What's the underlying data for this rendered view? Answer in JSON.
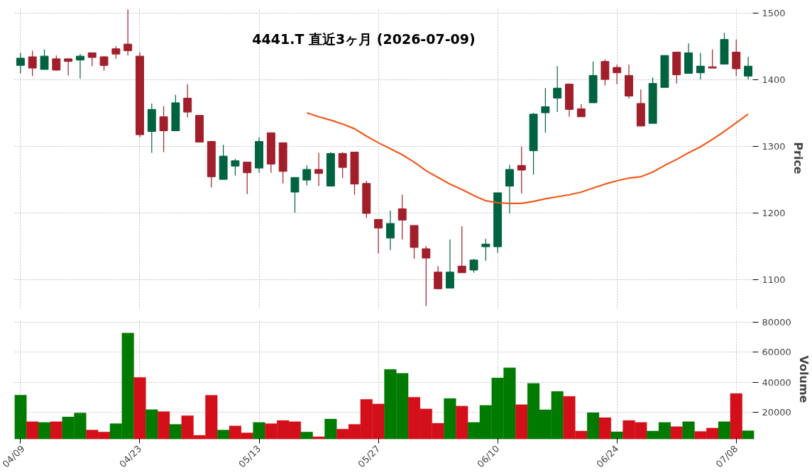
{
  "chart_data": [
    {
      "type": "candlestick",
      "title": "4441.T 直近3ヶ月 (2026-07-09)",
      "ylabel": "Price",
      "ohlc": [
        [
          1421,
          1440,
          1409,
          1432
        ],
        [
          1434,
          1443,
          1405,
          1417
        ],
        [
          1415,
          1445,
          1415,
          1435
        ],
        [
          1431,
          1436,
          1413,
          1414
        ],
        [
          1431,
          1431,
          1406,
          1427
        ],
        [
          1429,
          1438,
          1401,
          1435
        ],
        [
          1440,
          1440,
          1420,
          1433
        ],
        [
          1434,
          1435,
          1413,
          1421
        ],
        [
          1446,
          1450,
          1431,
          1438
        ],
        [
          1453,
          1505,
          1436,
          1443
        ],
        [
          1435,
          1441,
          1313,
          1317
        ],
        [
          1322,
          1364,
          1290,
          1355
        ],
        [
          1344,
          1360,
          1291,
          1323
        ],
        [
          1323,
          1377,
          1323,
          1365
        ],
        [
          1372,
          1393,
          1343,
          1351
        ],
        [
          1346,
          1346,
          1306,
          1306
        ],
        [
          1307,
          1307,
          1238,
          1254
        ],
        [
          1250,
          1302,
          1250,
          1285
        ],
        [
          1270,
          1281,
          1256,
          1278
        ],
        [
          1276,
          1276,
          1228,
          1260
        ],
        [
          1267,
          1313,
          1260,
          1307
        ],
        [
          1320,
          1320,
          1260,
          1273
        ],
        [
          1305,
          1305,
          1244,
          1262
        ],
        [
          1231,
          1253,
          1200,
          1253
        ],
        [
          1249,
          1271,
          1241,
          1265
        ],
        [
          1265,
          1290,
          1240,
          1259
        ],
        [
          1240,
          1291,
          1240,
          1289
        ],
        [
          1289,
          1291,
          1252,
          1268
        ],
        [
          1291,
          1291,
          1227,
          1243
        ],
        [
          1244,
          1248,
          1192,
          1199
        ],
        [
          1190,
          1190,
          1139,
          1177
        ],
        [
          1162,
          1203,
          1144,
          1184
        ],
        [
          1206,
          1227,
          1160,
          1189
        ],
        [
          1181,
          1181,
          1131,
          1148
        ],
        [
          1146,
          1150,
          1060,
          1132
        ],
        [
          1111,
          1120,
          1085,
          1086
        ],
        [
          1087,
          1160,
          1087,
          1111
        ],
        [
          1120,
          1180,
          1110,
          1110
        ],
        [
          1114,
          1131,
          1110,
          1129
        ],
        [
          1149,
          1161,
          1128,
          1153
        ],
        [
          1149,
          1230,
          1140,
          1230
        ],
        [
          1240,
          1272,
          1199,
          1265
        ],
        [
          1271,
          1299,
          1229,
          1264
        ],
        [
          1293,
          1350,
          1257,
          1348
        ],
        [
          1350,
          1387,
          1320,
          1359
        ],
        [
          1372,
          1420,
          1351,
          1387
        ],
        [
          1393,
          1394,
          1344,
          1355
        ],
        [
          1356,
          1363,
          1344,
          1344
        ],
        [
          1365,
          1427,
          1365,
          1406
        ],
        [
          1427,
          1430,
          1391,
          1400
        ],
        [
          1418,
          1422,
          1393,
          1410
        ],
        [
          1406,
          1422,
          1371,
          1375
        ],
        [
          1364,
          1385,
          1330,
          1330
        ],
        [
          1334,
          1403,
          1334,
          1394
        ],
        [
          1388,
          1436,
          1388,
          1436
        ],
        [
          1441,
          1441,
          1394,
          1407
        ],
        [
          1409,
          1454,
          1409,
          1440
        ],
        [
          1410,
          1440,
          1400,
          1420
        ],
        [
          1419,
          1445,
          1417,
          1417
        ],
        [
          1423,
          1470,
          1423,
          1460
        ],
        [
          1441,
          1460,
          1405,
          1416
        ],
        [
          1405,
          1434,
          1400,
          1420
        ]
      ],
      "colors": [
        "#006340",
        "#a01f2a",
        "#006340",
        "#a01f2a",
        "#a01f2a",
        "#006340",
        "#a01f2a",
        "#a01f2a",
        "#a01f2a",
        "#a01f2a",
        "#a01f2a",
        "#006340",
        "#a01f2a",
        "#006340",
        "#a01f2a",
        "#a01f2a",
        "#a01f2a",
        "#006340",
        "#006340",
        "#a01f2a",
        "#006340",
        "#a01f2a",
        "#a01f2a",
        "#006340",
        "#006340",
        "#a01f2a",
        "#006340",
        "#a01f2a",
        "#a01f2a",
        "#a01f2a",
        "#a01f2a",
        "#006340",
        "#a01f2a",
        "#a01f2a",
        "#a01f2a",
        "#a01f2a",
        "#006340",
        "#a01f2a",
        "#006340",
        "#006340",
        "#006340",
        "#006340",
        "#a01f2a",
        "#006340",
        "#006340",
        "#006340",
        "#a01f2a",
        "#a01f2a",
        "#006340",
        "#a01f2a",
        "#a01f2a",
        "#a01f2a",
        "#a01f2a",
        "#006340",
        "#006340",
        "#a01f2a",
        "#006340",
        "#006340",
        "#a01f2a",
        "#006340",
        "#a01f2a",
        "#006340"
      ],
      "series": [
        {
          "type": "line",
          "color": "#f05a1e",
          "values": [
            null,
            null,
            null,
            null,
            null,
            null,
            null,
            null,
            null,
            null,
            null,
            null,
            null,
            null,
            null,
            null,
            null,
            null,
            null,
            null,
            null,
            null,
            null,
            null,
            1350,
            1344,
            1339,
            1333,
            1326,
            1315,
            1305,
            1296,
            1287,
            1276,
            1263,
            1253,
            1243,
            1235,
            1226,
            1218,
            1215,
            1214,
            1214,
            1217,
            1221,
            1224,
            1227,
            1231,
            1237,
            1243,
            1248,
            1252,
            1254,
            1261,
            1271,
            1280,
            1290,
            1299,
            1310,
            1322,
            1335,
            1348
          ]
        }
      ],
      "ylim": [
        1056,
        1508
      ],
      "yticks": [
        1100,
        1200,
        1300,
        1400,
        1500
      ],
      "grid": true,
      "tick_labels": "y"
    },
    {
      "type": "bar",
      "ylabel": "Volume",
      "categories": [
        "04/09",
        null,
        null,
        null,
        null,
        null,
        null,
        null,
        null,
        null,
        "04/23",
        null,
        null,
        null,
        null,
        null,
        null,
        null,
        null,
        null,
        "05/13",
        null,
        null,
        null,
        null,
        null,
        null,
        null,
        null,
        null,
        "05/27",
        null,
        null,
        null,
        null,
        null,
        null,
        null,
        null,
        null,
        "06/10",
        null,
        null,
        null,
        null,
        null,
        null,
        null,
        null,
        null,
        "06/24",
        null,
        null,
        null,
        null,
        null,
        null,
        null,
        null,
        null,
        "07/08",
        null
      ],
      "values": [
        31500,
        13700,
        13200,
        13700,
        16900,
        19500,
        8100,
        6800,
        12400,
        72900,
        43300,
        21800,
        20500,
        11900,
        17700,
        4600,
        31400,
        8100,
        10900,
        6300,
        13200,
        12400,
        14500,
        13700,
        6800,
        3700,
        15500,
        8800,
        11900,
        28600,
        25500,
        48600,
        46000,
        30100,
        22200,
        12700,
        29200,
        24100,
        13200,
        24600,
        42900,
        49700,
        25100,
        39300,
        21700,
        33900,
        30600,
        7500,
        19700,
        16400,
        7000,
        14500,
        13200,
        7500,
        13200,
        10400,
        13700,
        7200,
        9400,
        13700,
        32500,
        7700
      ],
      "colors": [
        "#007a00",
        "#d30f1a",
        "#007a00",
        "#d30f1a",
        "#007a00",
        "#007a00",
        "#d30f1a",
        "#d30f1a",
        "#007a00",
        "#007a00",
        "#d30f1a",
        "#007a00",
        "#d30f1a",
        "#007a00",
        "#d30f1a",
        "#d30f1a",
        "#d30f1a",
        "#007a00",
        "#d30f1a",
        "#d30f1a",
        "#007a00",
        "#d30f1a",
        "#d30f1a",
        "#d30f1a",
        "#007a00",
        "#d30f1a",
        "#007a00",
        "#d30f1a",
        "#d30f1a",
        "#d30f1a",
        "#d30f1a",
        "#007a00",
        "#007a00",
        "#d30f1a",
        "#d30f1a",
        "#d30f1a",
        "#007a00",
        "#d30f1a",
        "#007a00",
        "#007a00",
        "#007a00",
        "#007a00",
        "#d30f1a",
        "#007a00",
        "#007a00",
        "#007a00",
        "#d30f1a",
        "#d30f1a",
        "#007a00",
        "#d30f1a",
        "#007a00",
        "#d30f1a",
        "#d30f1a",
        "#007a00",
        "#007a00",
        "#d30f1a",
        "#007a00",
        "#d30f1a",
        "#d30f1a",
        "#007a00",
        "#d30f1a",
        "#007a00"
      ],
      "ylim": [
        2000,
        82000
      ],
      "yticks": [
        20000,
        40000,
        60000,
        80000
      ],
      "grid": true
    }
  ]
}
